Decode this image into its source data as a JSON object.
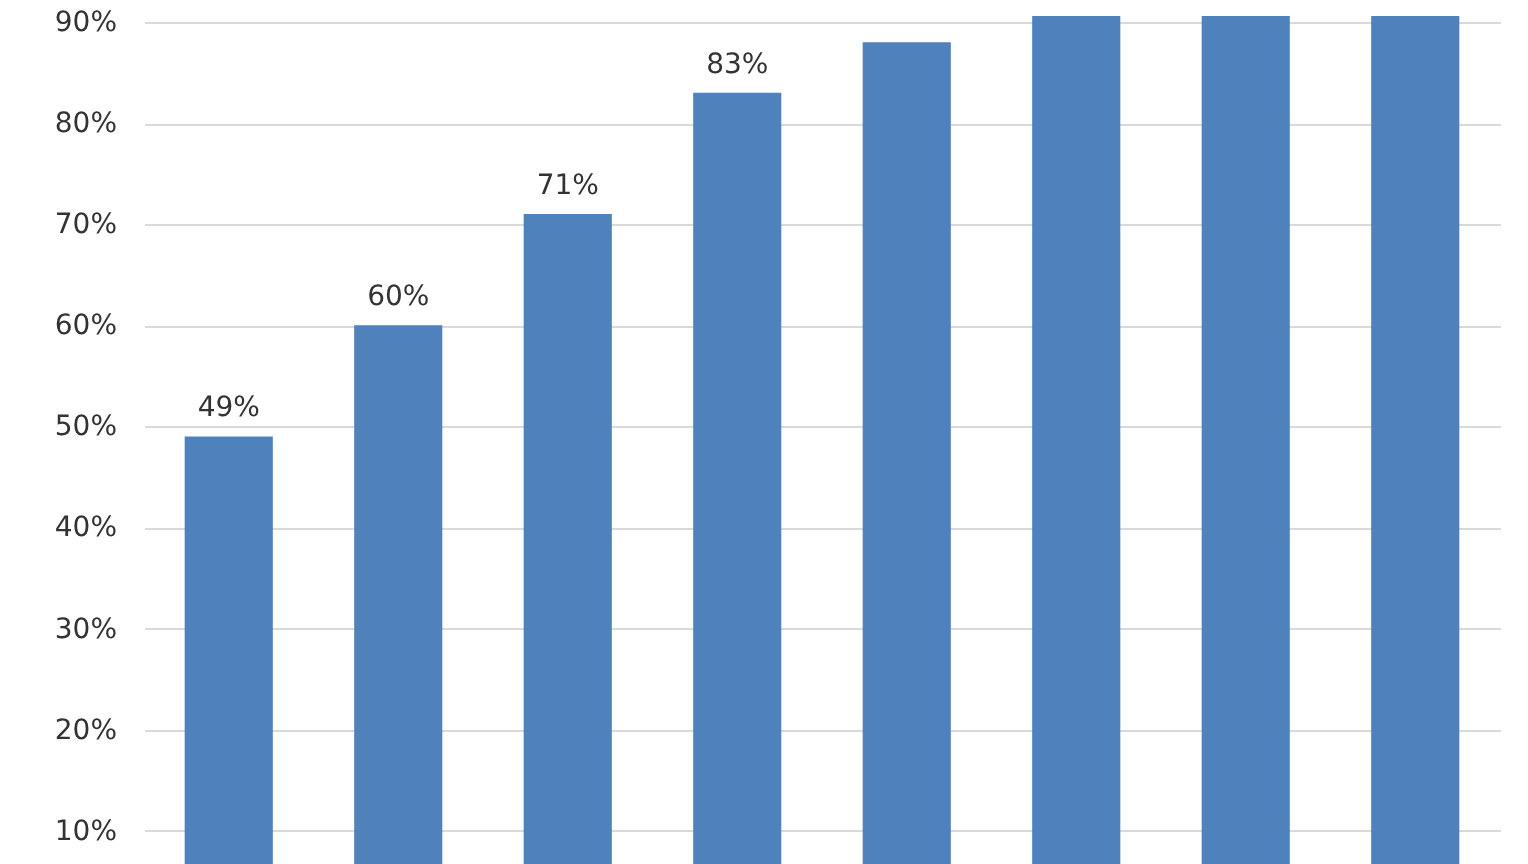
{
  "chart_data": {
    "type": "bar",
    "categories": [
      null,
      null,
      null,
      null,
      null,
      null,
      null,
      null
    ],
    "values": [
      49,
      60,
      71,
      83,
      88,
      90.6,
      90.6,
      90.6
    ],
    "color": "#4f81bd",
    "value_labels": [
      "49%",
      "60%",
      "71%",
      "83%",
      null,
      null,
      null,
      null
    ],
    "ylim": [
      6.7,
      90.6
    ],
    "yticks": [
      {
        "value": 10,
        "label": "10%"
      },
      {
        "value": 20,
        "label": "20%"
      },
      {
        "value": 30,
        "label": "30%"
      },
      {
        "value": 40,
        "label": "40%"
      },
      {
        "value": 50,
        "label": "50%"
      },
      {
        "value": 60,
        "label": "60%"
      },
      {
        "value": 70,
        "label": "70%"
      },
      {
        "value": 80,
        "label": "80%"
      },
      {
        "value": 90,
        "label": "90%"
      }
    ],
    "grid": "y",
    "tick_labels": "y"
  }
}
